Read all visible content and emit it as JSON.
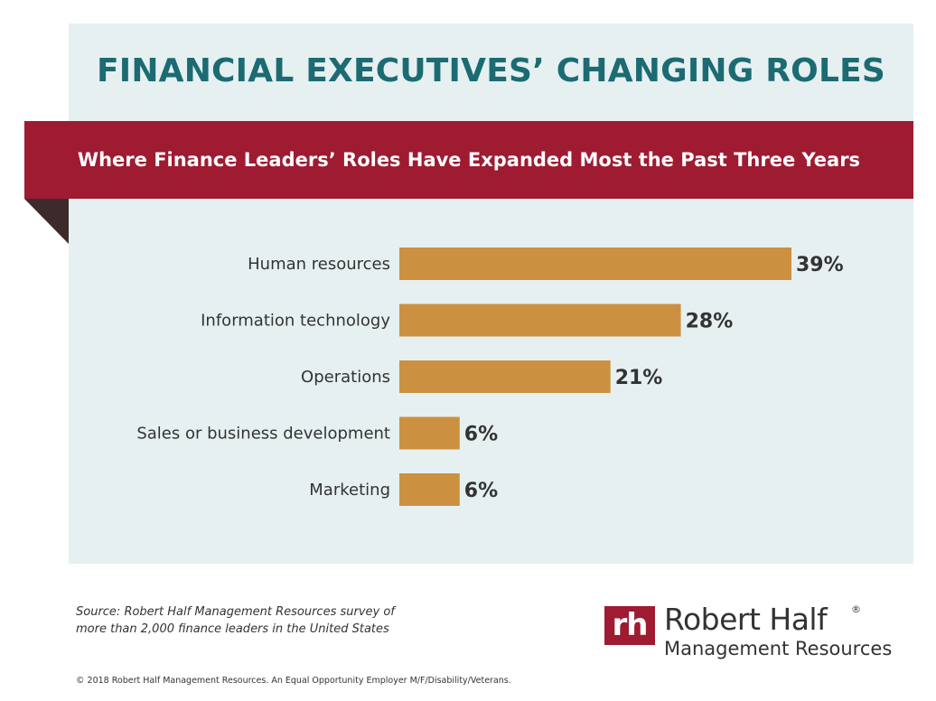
{
  "header": {
    "title": "FINANCIAL EXECUTIVES’ CHANGING ROLES",
    "subtitle": "Where Finance Leaders’ Roles Have Expanded Most the Past Three Years"
  },
  "chart_data": {
    "type": "bar",
    "orientation": "horizontal",
    "categories": [
      "Human resources",
      "Information technology",
      "Operations",
      "Sales or business development",
      "Marketing"
    ],
    "values": [
      39,
      28,
      21,
      6,
      6
    ],
    "value_labels": [
      "39%",
      "28%",
      "21%",
      "6%",
      "6%"
    ],
    "unit": "%",
    "xlim": [
      0,
      39
    ],
    "grid": false,
    "legend": "none",
    "colors": {
      "bar": "#cc9140",
      "text": "#333333"
    }
  },
  "source": {
    "line1": "Source: Robert Half Management Resources survey of",
    "line2": "more than 2,000 finance leaders in the United States"
  },
  "footer": {
    "copyright": "© 2018 Robert Half Management Resources. An Equal Opportunity Employer M/F/Disability/Veterans."
  },
  "logo": {
    "mark": "rh",
    "name": "Robert Half",
    "registered": "®",
    "subtitle": "Management Resources"
  },
  "colors": {
    "title": "#1c6b73",
    "ribbon": "#9e1b32",
    "ribbon_fold": "#3d2b2b",
    "panel": "#e6f0f1"
  }
}
